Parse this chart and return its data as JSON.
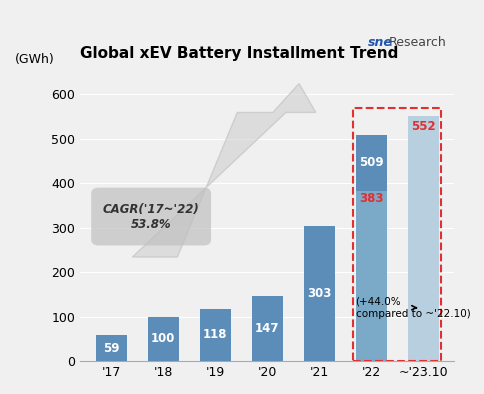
{
  "title": "Global xEV Battery Installment Trend",
  "ylabel": "(GWh)",
  "categories": [
    "'17",
    "'18",
    "'19",
    "'20",
    "'21",
    "'22",
    "~'23.10"
  ],
  "values": [
    59,
    100,
    118,
    147,
    303,
    509,
    552
  ],
  "bar_colors_normal": "#5b8db8",
  "bar_color_22_lower": "#7aaac8",
  "bar_color_23_fill": "#b8cfe0",
  "bar_color_22_upper": "#5b8db8",
  "value_22_lower": 383,
  "value_22_upper": 509,
  "value_23": 552,
  "ylim": [
    0,
    650
  ],
  "yticks": [
    0,
    100,
    200,
    300,
    400,
    500,
    600
  ],
  "bg_color": "#f0f0f0",
  "cagr_text": "CAGR('17~'22)\n53.8%",
  "annotation_text": "(+44.0%\ncompared to ~'22.10)",
  "dashed_color": "#e03030",
  "logo_text_sne": "sne",
  "logo_text_research": "Research"
}
